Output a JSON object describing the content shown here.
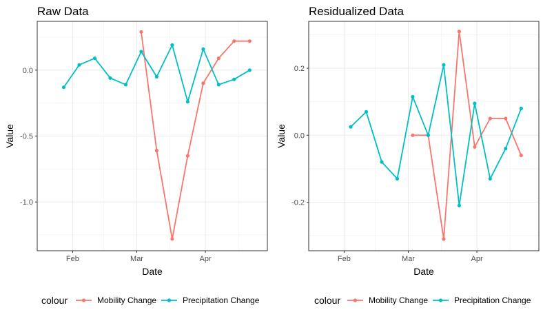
{
  "legend": {
    "title": "colour",
    "items": [
      {
        "label": "Mobility Change",
        "color": "#F8766D"
      },
      {
        "label": "Precipitation Change",
        "color": "#00BFC4"
      }
    ]
  },
  "chart_data": [
    {
      "type": "line",
      "title": "Raw Data",
      "xlabel": "Date",
      "ylabel": "Value",
      "x_ticks": [
        "Feb",
        "Mar",
        "Apr"
      ],
      "y_ticks": [
        "0.0",
        "-0.5",
        "-1.0"
      ],
      "xlim": [
        "2020-01-16",
        "2020-04-29"
      ],
      "ylim": [
        -1.37,
        0.37
      ],
      "grid": true,
      "legend_position": "bottom",
      "series": [
        {
          "name": "Mobility Change",
          "color": "#F8766D",
          "x": [
            "2020-03-03",
            "2020-03-10",
            "2020-03-17",
            "2020-03-24",
            "2020-03-31",
            "2020-04-07",
            "2020-04-14",
            "2020-04-21"
          ],
          "y": [
            0.29,
            -0.61,
            -1.28,
            -0.65,
            -0.1,
            0.09,
            0.22,
            0.22
          ]
        },
        {
          "name": "Precipitation Change",
          "color": "#00BFC4",
          "x": [
            "2020-01-28",
            "2020-02-04",
            "2020-02-11",
            "2020-02-18",
            "2020-02-25",
            "2020-03-03",
            "2020-03-10",
            "2020-03-17",
            "2020-03-24",
            "2020-03-31",
            "2020-04-07",
            "2020-04-14",
            "2020-04-21"
          ],
          "y": [
            -0.13,
            0.04,
            0.09,
            -0.06,
            -0.11,
            0.14,
            -0.05,
            0.19,
            -0.24,
            0.16,
            -0.11,
            -0.07,
            0.0
          ]
        }
      ]
    },
    {
      "type": "line",
      "title": "Residualized Data",
      "xlabel": "Date",
      "ylabel": "Value",
      "x_ticks": [
        "Feb",
        "Mar",
        "Apr"
      ],
      "y_ticks": [
        "0.2",
        "0.0",
        "-0.2"
      ],
      "xlim": [
        "2020-01-16",
        "2020-04-29"
      ],
      "ylim": [
        -0.345,
        0.34
      ],
      "grid": true,
      "legend_position": "bottom",
      "series": [
        {
          "name": "Mobility Change",
          "color": "#F8766D",
          "x": [
            "2020-03-03",
            "2020-03-10",
            "2020-03-17",
            "2020-03-24",
            "2020-03-31",
            "2020-04-07",
            "2020-04-14",
            "2020-04-21"
          ],
          "y": [
            0.0,
            0.0,
            -0.31,
            0.31,
            -0.035,
            0.05,
            0.05,
            -0.06
          ]
        },
        {
          "name": "Precipitation Change",
          "color": "#00BFC4",
          "x": [
            "2020-02-04",
            "2020-02-11",
            "2020-02-18",
            "2020-02-25",
            "2020-03-03",
            "2020-03-10",
            "2020-03-17",
            "2020-03-24",
            "2020-03-31",
            "2020-04-07",
            "2020-04-14",
            "2020-04-21"
          ],
          "y": [
            0.025,
            0.07,
            -0.08,
            -0.13,
            0.115,
            0.0,
            0.21,
            -0.21,
            0.095,
            -0.13,
            -0.04,
            0.08
          ]
        }
      ]
    }
  ]
}
